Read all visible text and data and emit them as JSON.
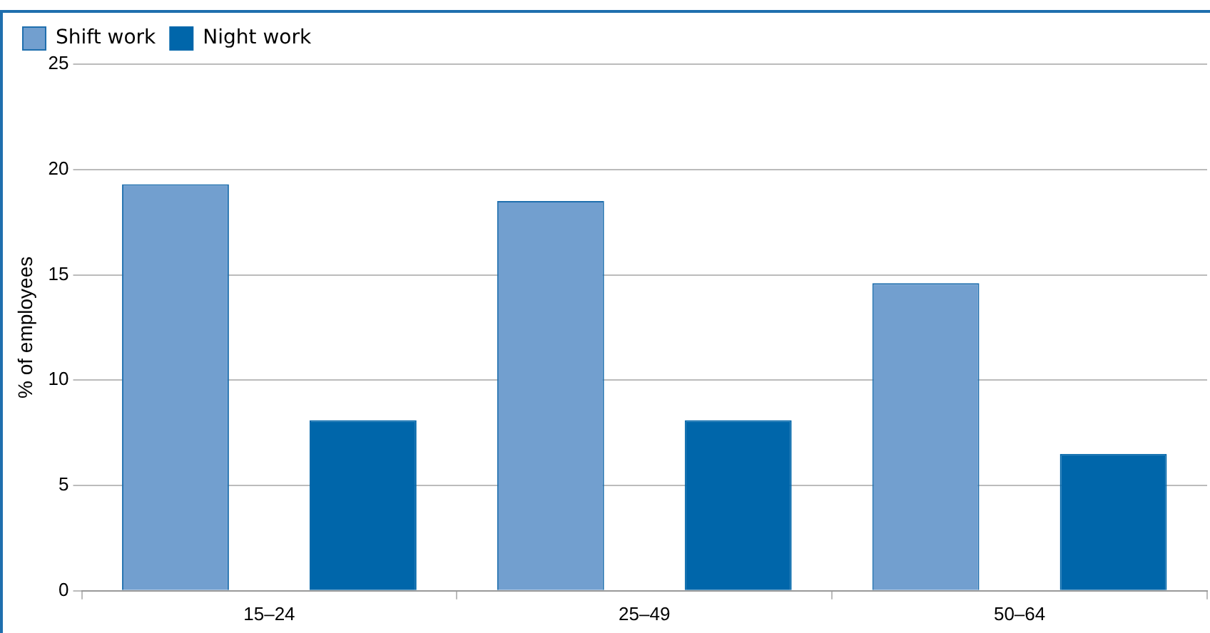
{
  "chart_data": {
    "type": "bar",
    "ylabel": "% of employees",
    "categories": [
      "15–24",
      "25–49",
      "50–64"
    ],
    "series": [
      {
        "name": "Shift work",
        "color": "#729fcf",
        "values": [
          19.3,
          18.5,
          14.6
        ]
      },
      {
        "name": "Night work",
        "color": "#0066aa",
        "values": [
          8.1,
          8.1,
          6.5
        ]
      }
    ],
    "ylim": [
      0,
      25
    ],
    "yticks": [
      0,
      5,
      10,
      15,
      20,
      25
    ],
    "grid": "y",
    "legend": "top left"
  }
}
